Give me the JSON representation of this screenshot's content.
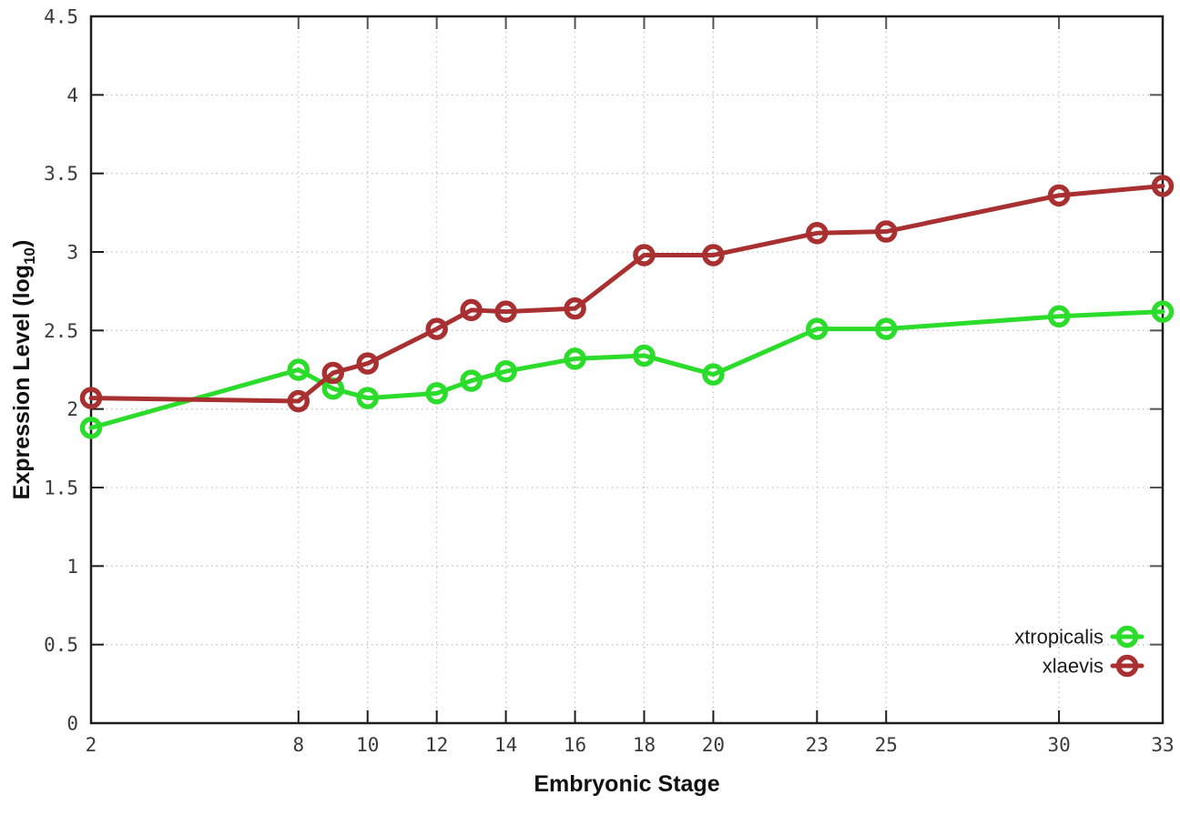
{
  "chart_data": {
    "type": "line",
    "title": "",
    "xlabel": "Embryonic Stage",
    "ylabel_main": "Expression Level (log",
    "ylabel_sub": "10",
    "ylabel_suffix": ")",
    "xlim": [
      2,
      33
    ],
    "ylim": [
      0,
      4.5
    ],
    "x_ticks": [
      2,
      8,
      10,
      12,
      14,
      16,
      18,
      20,
      23,
      25,
      30,
      33
    ],
    "y_ticks": [
      0,
      0.5,
      1,
      1.5,
      2,
      2.5,
      3,
      3.5,
      4,
      4.5
    ],
    "grid": true,
    "legend_position": "inside-bottom-right",
    "x": [
      2,
      8,
      9,
      10,
      12,
      13,
      14,
      16,
      18,
      20,
      23,
      25,
      30,
      33
    ],
    "series": [
      {
        "name": "xtropicalis",
        "color": "#2bdc2b",
        "marker": "open-circle",
        "values": [
          1.88,
          2.25,
          2.13,
          2.07,
          2.1,
          2.18,
          2.24,
          2.32,
          2.34,
          2.22,
          2.51,
          2.51,
          2.59,
          2.62
        ]
      },
      {
        "name": "xlaevis",
        "color": "#a93030",
        "marker": "open-circle",
        "values": [
          2.07,
          2.05,
          2.23,
          2.29,
          2.51,
          2.63,
          2.62,
          2.64,
          2.98,
          2.98,
          3.12,
          3.13,
          3.36,
          3.42
        ]
      }
    ],
    "colors": {
      "axis": "#1c1c1c",
      "grid": "#c2c2c2",
      "tick_label": "#3a3a3a",
      "background": "#ffffff"
    }
  }
}
